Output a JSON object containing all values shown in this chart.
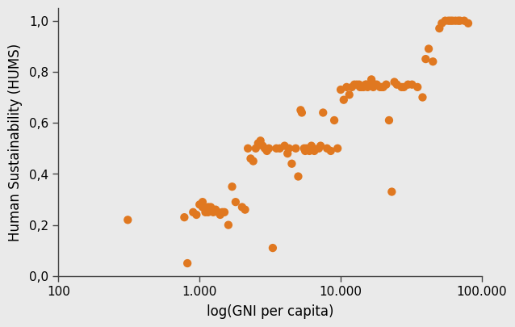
{
  "title": "",
  "xlabel": "log(GNI per capita)",
  "ylabel": "Human Sustainability (HUMS)",
  "dot_color": "#E07820",
  "bg_color": "#EAEAEA",
  "xlim": [
    100,
    100000
  ],
  "ylim": [
    0.0,
    1.05
  ],
  "yticks": [
    0.0,
    0.2,
    0.4,
    0.6,
    0.8,
    1.0
  ],
  "ytick_labels": [
    "0,0",
    "0,2",
    "0,4",
    "0,6",
    "0,8",
    "1,0"
  ],
  "xtick_labels": [
    "100",
    "1.000",
    "10.000",
    "100.000"
  ],
  "xtick_values": [
    100,
    1000,
    10000,
    100000
  ],
  "points": [
    [
      310,
      0.22
    ],
    [
      780,
      0.23
    ],
    [
      820,
      0.05
    ],
    [
      900,
      0.25
    ],
    [
      950,
      0.24
    ],
    [
      1000,
      0.28
    ],
    [
      1050,
      0.29
    ],
    [
      1050,
      0.27
    ],
    [
      1100,
      0.25
    ],
    [
      1100,
      0.26
    ],
    [
      1150,
      0.27
    ],
    [
      1150,
      0.25
    ],
    [
      1200,
      0.26
    ],
    [
      1200,
      0.27
    ],
    [
      1250,
      0.25
    ],
    [
      1300,
      0.26
    ],
    [
      1350,
      0.25
    ],
    [
      1400,
      0.24
    ],
    [
      1450,
      0.25
    ],
    [
      1500,
      0.25
    ],
    [
      1600,
      0.2
    ],
    [
      1700,
      0.35
    ],
    [
      1800,
      0.29
    ],
    [
      2000,
      0.27
    ],
    [
      2100,
      0.26
    ],
    [
      2200,
      0.5
    ],
    [
      2300,
      0.46
    ],
    [
      2400,
      0.45
    ],
    [
      2500,
      0.5
    ],
    [
      2600,
      0.52
    ],
    [
      2700,
      0.53
    ],
    [
      2800,
      0.51
    ],
    [
      2900,
      0.5
    ],
    [
      3000,
      0.49
    ],
    [
      3100,
      0.5
    ],
    [
      3300,
      0.11
    ],
    [
      3500,
      0.5
    ],
    [
      3700,
      0.5
    ],
    [
      4000,
      0.51
    ],
    [
      4200,
      0.48
    ],
    [
      4300,
      0.5
    ],
    [
      4500,
      0.44
    ],
    [
      4800,
      0.5
    ],
    [
      5000,
      0.39
    ],
    [
      5200,
      0.65
    ],
    [
      5300,
      0.64
    ],
    [
      5500,
      0.5
    ],
    [
      5600,
      0.49
    ],
    [
      5700,
      0.5
    ],
    [
      6000,
      0.49
    ],
    [
      6200,
      0.51
    ],
    [
      6400,
      0.5
    ],
    [
      6500,
      0.49
    ],
    [
      7000,
      0.5
    ],
    [
      7200,
      0.51
    ],
    [
      7500,
      0.64
    ],
    [
      8000,
      0.5
    ],
    [
      8500,
      0.49
    ],
    [
      9000,
      0.61
    ],
    [
      9500,
      0.5
    ],
    [
      10000,
      0.73
    ],
    [
      10500,
      0.69
    ],
    [
      11000,
      0.74
    ],
    [
      11500,
      0.71
    ],
    [
      12000,
      0.74
    ],
    [
      12500,
      0.75
    ],
    [
      13000,
      0.75
    ],
    [
      13500,
      0.75
    ],
    [
      13700,
      0.74
    ],
    [
      14000,
      0.74
    ],
    [
      14500,
      0.74
    ],
    [
      15000,
      0.75
    ],
    [
      15200,
      0.75
    ],
    [
      15500,
      0.74
    ],
    [
      16000,
      0.75
    ],
    [
      16500,
      0.77
    ],
    [
      17000,
      0.74
    ],
    [
      17500,
      0.75
    ],
    [
      18000,
      0.75
    ],
    [
      19000,
      0.74
    ],
    [
      19500,
      0.74
    ],
    [
      20000,
      0.74
    ],
    [
      21000,
      0.75
    ],
    [
      22000,
      0.61
    ],
    [
      23000,
      0.33
    ],
    [
      24000,
      0.76
    ],
    [
      25000,
      0.75
    ],
    [
      27000,
      0.74
    ],
    [
      28000,
      0.74
    ],
    [
      30000,
      0.75
    ],
    [
      32000,
      0.75
    ],
    [
      35000,
      0.74
    ],
    [
      38000,
      0.7
    ],
    [
      40000,
      0.85
    ],
    [
      42000,
      0.89
    ],
    [
      45000,
      0.84
    ],
    [
      50000,
      0.97
    ],
    [
      52000,
      0.99
    ],
    [
      55000,
      1.0
    ],
    [
      58000,
      1.0
    ],
    [
      60000,
      1.0
    ],
    [
      62000,
      1.0
    ],
    [
      65000,
      1.0
    ],
    [
      68000,
      1.0
    ],
    [
      70000,
      1.0
    ],
    [
      75000,
      1.0
    ],
    [
      80000,
      0.99
    ]
  ]
}
